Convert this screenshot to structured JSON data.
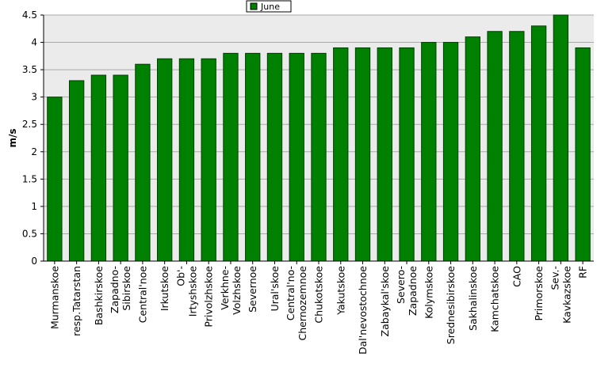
{
  "chart_data": {
    "type": "bar",
    "title": "",
    "xlabel": "",
    "ylabel": "m/s",
    "ylim": [
      0,
      4.5
    ],
    "yticks": [
      "0",
      "0.5",
      "1",
      "1.5",
      "2",
      "2.5",
      "3",
      "3.5",
      "4",
      "4.5"
    ],
    "grid": true,
    "legend_position": "top-center",
    "categories": [
      [
        "Murmanskoe"
      ],
      [
        "resp.Tatarstan"
      ],
      [
        "Bashkirskoe"
      ],
      [
        "Zapadno-",
        "Sibirskoe"
      ],
      [
        "Central'noe"
      ],
      [
        "Irkutskoe"
      ],
      [
        "Ob'-",
        "Irtyshskoe"
      ],
      [
        "Privolzhskoe"
      ],
      [
        "Verkhne-",
        "Volzhskoe"
      ],
      [
        "Severnoe"
      ],
      [
        "Ural'skoe"
      ],
      [
        "Central'no-",
        "Chernozemnoe"
      ],
      [
        "Chukotskoe"
      ],
      [
        "Yakutskoe"
      ],
      [
        "Dal'nevostochnoe"
      ],
      [
        "Zabaykal'skoe"
      ],
      [
        "Severo-",
        "Zapadnoe"
      ],
      [
        "Kolymskoe"
      ],
      [
        "Srednesibirskoe"
      ],
      [
        "Sakhalinskoe"
      ],
      [
        "Kamchatskoe"
      ],
      [
        "CAO"
      ],
      [
        "Primorskoe"
      ],
      [
        "Sev.-",
        "Kavkazskoe"
      ],
      [
        "RF"
      ]
    ],
    "series": [
      {
        "name": "June",
        "color": "#008000",
        "values": [
          3.0,
          3.3,
          3.4,
          3.4,
          3.6,
          3.7,
          3.7,
          3.7,
          3.8,
          3.8,
          3.8,
          3.8,
          3.8,
          3.9,
          3.9,
          3.9,
          3.9,
          4.0,
          4.0,
          4.1,
          4.2,
          4.2,
          4.3,
          4.5,
          3.9
        ]
      }
    ]
  },
  "colors": {
    "plot_background": "#ebebeb",
    "gridline": "#aaaaaa",
    "bar_fill": "#008000",
    "bar_edge": "#004000"
  }
}
